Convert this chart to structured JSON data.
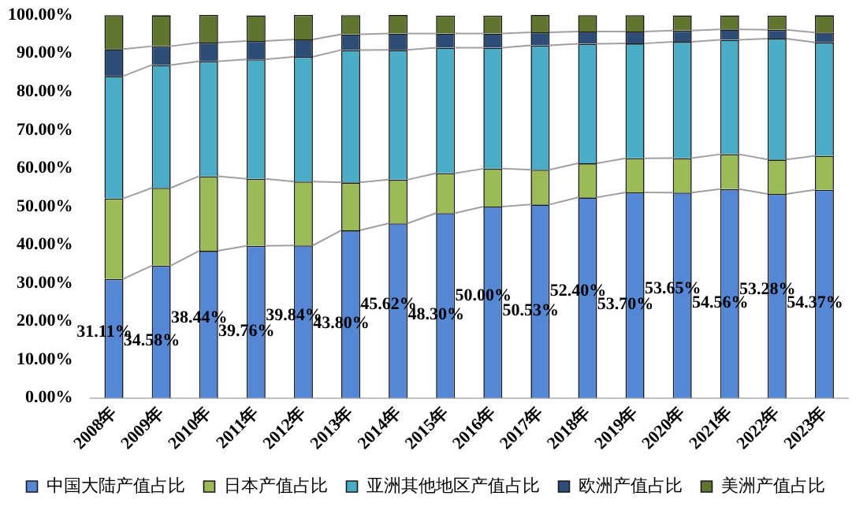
{
  "chart_data": {
    "type": "bar",
    "stacked": true,
    "categories": [
      "2008年",
      "2009年",
      "2010年",
      "2011年",
      "2012年",
      "2013年",
      "2014年",
      "2015年",
      "2016年",
      "2017年",
      "2018年",
      "2019年",
      "2020年",
      "2021年",
      "2022年",
      "2023年"
    ],
    "series": [
      {
        "name": "中国大陆产值占比",
        "color": "#5587d4",
        "values": [
          31.11,
          34.58,
          38.44,
          39.76,
          39.84,
          43.8,
          45.62,
          48.3,
          50.0,
          50.53,
          52.4,
          53.7,
          53.65,
          54.56,
          53.28,
          54.37
        ],
        "value_labels": [
          "31.11%",
          "34.58%",
          "38.44%",
          "39.76%",
          "39.84%",
          "43.80%",
          "45.62%",
          "48.30%",
          "50.00%",
          "50.53%",
          "52.40%",
          "53.70%",
          "53.65%",
          "54.56%",
          "53.28%",
          "54.37%"
        ]
      },
      {
        "name": "日本产值占比",
        "color": "#9bbb59",
        "values": [
          21.0,
          20.3,
          19.5,
          17.5,
          16.7,
          12.5,
          11.4,
          10.4,
          9.9,
          9.1,
          8.9,
          8.9,
          9.0,
          9.1,
          9.0,
          8.9
        ]
      },
      {
        "name": "亚洲其他地区产值占比",
        "color": "#4bacc6",
        "values": [
          32.0,
          32.1,
          30.0,
          31.2,
          32.6,
          34.6,
          33.9,
          32.8,
          31.6,
          32.5,
          31.2,
          30.0,
          30.4,
          29.9,
          31.6,
          29.6
        ]
      },
      {
        "name": "欧洲产值占比",
        "color": "#2c4d75",
        "values": [
          7.0,
          4.9,
          4.9,
          4.8,
          4.5,
          4.1,
          4.3,
          3.7,
          3.7,
          3.4,
          3.2,
          3.1,
          2.9,
          2.7,
          2.3,
          2.6
        ]
      },
      {
        "name": "美洲产值占比",
        "color": "#5f7530",
        "values": [
          8.9,
          8.1,
          7.2,
          6.7,
          6.4,
          5.0,
          4.8,
          4.7,
          4.7,
          4.5,
          4.3,
          4.3,
          4.0,
          3.7,
          3.7,
          4.5
        ]
      }
    ],
    "ylim": [
      0,
      100
    ],
    "yticks": [
      {
        "value": 0,
        "label": "0.00%"
      },
      {
        "value": 10,
        "label": "10.00%"
      },
      {
        "value": 20,
        "label": "20.00%"
      },
      {
        "value": 30,
        "label": "30.00%"
      },
      {
        "value": 40,
        "label": "40.00%"
      },
      {
        "value": 50,
        "label": "50.00%"
      },
      {
        "value": 60,
        "label": "60.00%"
      },
      {
        "value": 70,
        "label": "70.00%"
      },
      {
        "value": 80,
        "label": "80.00%"
      },
      {
        "value": 90,
        "label": "90.00%"
      },
      {
        "value": 100,
        "label": "100.00%"
      }
    ],
    "grid": false,
    "legend": "bottom"
  }
}
